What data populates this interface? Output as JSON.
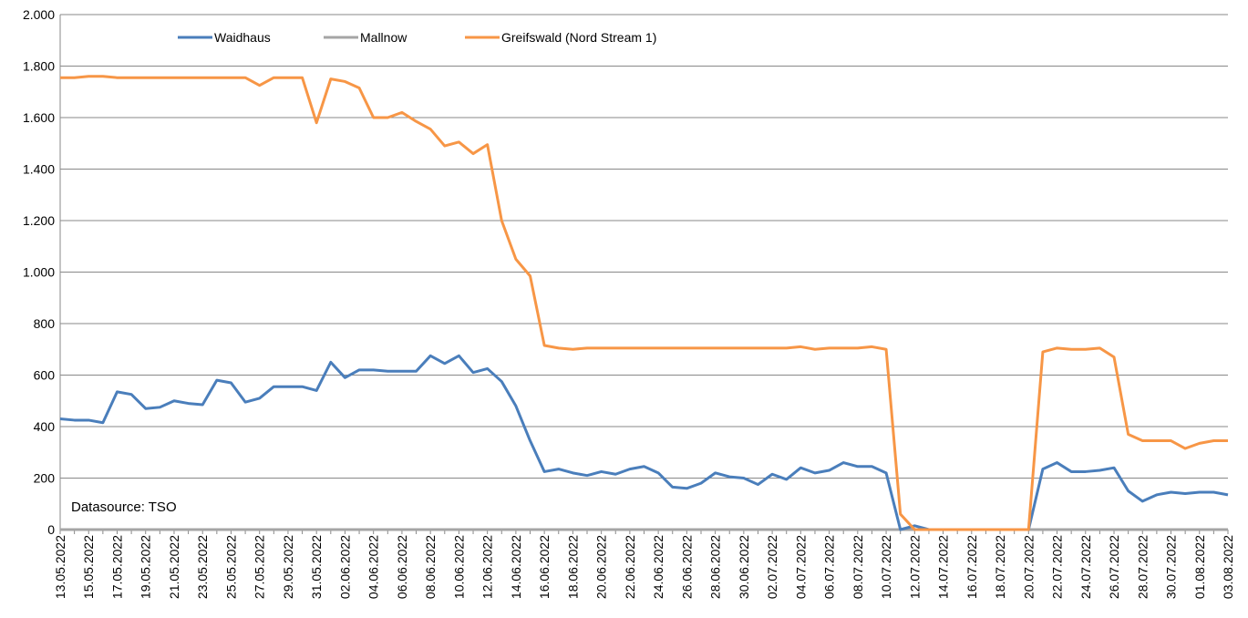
{
  "chart_data": {
    "type": "line",
    "annotation": "Datasource: TSO",
    "categories": [
      "13.05.2022",
      null,
      "15.05.2022",
      null,
      "17.05.2022",
      null,
      "19.05.2022",
      null,
      "21.05.2022",
      null,
      "23.05.2022",
      null,
      "25.05.2022",
      null,
      "27.05.2022",
      null,
      "29.05.2022",
      null,
      "31.05.2022",
      null,
      "02.06.2022",
      null,
      "04.06.2022",
      null,
      "06.06.2022",
      null,
      "08.06.2022",
      null,
      "10.06.2022",
      null,
      "12.06.2022",
      null,
      "14.06.2022",
      null,
      "16.06.2022",
      null,
      "18.06.2022",
      null,
      "20.06.2022",
      null,
      "22.06.2022",
      null,
      "24.06.2022",
      null,
      "26.06.2022",
      null,
      "28.06.2022",
      null,
      "30.06.2022",
      null,
      "02.07.2022",
      null,
      "04.07.2022",
      null,
      "06.07.2022",
      null,
      "08.07.2022",
      null,
      "10.07.2022",
      null,
      "12.07.2022",
      null,
      "14.07.2022",
      null,
      "16.07.2022",
      null,
      "18.07.2022",
      null,
      "20.07.2022",
      null,
      "22.07.2022",
      null,
      "24.07.2022",
      null,
      "26.07.2022",
      null,
      "28.07.2022",
      null,
      "30.07.2022",
      null,
      "01.08.2022",
      null,
      "03.08.2022"
    ],
    "series": [
      {
        "name": "Waidhaus",
        "color": "#4a7ebb",
        "values": [
          430,
          425,
          425,
          415,
          535,
          525,
          470,
          475,
          500,
          490,
          485,
          580,
          570,
          495,
          510,
          555,
          555,
          555,
          540,
          650,
          590,
          620,
          620,
          615,
          615,
          615,
          675,
          645,
          675,
          610,
          625,
          575,
          480,
          345,
          225,
          235,
          220,
          210,
          225,
          215,
          235,
          245,
          220,
          165,
          160,
          180,
          220,
          205,
          200,
          175,
          215,
          195,
          240,
          220,
          230,
          260,
          245,
          245,
          220,
          0,
          15,
          0,
          0,
          0,
          0,
          0,
          0,
          0,
          0,
          235,
          260,
          225,
          225,
          230,
          240,
          150,
          110,
          135,
          145,
          140,
          145,
          145,
          135
        ]
      },
      {
        "name": "Mallnow",
        "color": "#a5a5a5",
        "values": [
          0,
          0,
          0,
          0,
          0,
          0,
          0,
          0,
          0,
          0,
          0,
          0,
          0,
          0,
          0,
          0,
          0,
          0,
          0,
          0,
          0,
          0,
          0,
          0,
          0,
          0,
          0,
          0,
          0,
          0,
          0,
          0,
          0,
          0,
          0,
          0,
          0,
          0,
          0,
          0,
          0,
          0,
          0,
          0,
          0,
          0,
          0,
          0,
          0,
          0,
          0,
          0,
          0,
          0,
          0,
          0,
          0,
          0,
          0,
          0,
          0,
          0,
          0,
          0,
          0,
          0,
          0,
          0,
          0,
          0,
          0,
          0,
          0,
          0,
          0,
          0,
          0,
          0,
          0,
          0,
          0,
          0,
          0
        ]
      },
      {
        "name": "Greifswald (Nord Stream 1)",
        "color": "#f79646",
        "values": [
          1755,
          1755,
          1760,
          1760,
          1755,
          1755,
          1755,
          1755,
          1755,
          1755,
          1755,
          1755,
          1755,
          1755,
          1725,
          1755,
          1755,
          1755,
          1580,
          1750,
          1740,
          1715,
          1600,
          1600,
          1620,
          1585,
          1555,
          1490,
          1505,
          1460,
          1495,
          1200,
          1050,
          985,
          715,
          705,
          700,
          705,
          705,
          705,
          705,
          705,
          705,
          705,
          705,
          705,
          705,
          705,
          705,
          705,
          705,
          705,
          710,
          700,
          705,
          705,
          705,
          710,
          700,
          60,
          0,
          0,
          0,
          0,
          0,
          0,
          0,
          0,
          0,
          690,
          705,
          700,
          700,
          705,
          670,
          370,
          345,
          345,
          345,
          315,
          335,
          345,
          345
        ]
      }
    ],
    "ylim": [
      0,
      2000
    ],
    "yticks": [
      0,
      200,
      400,
      600,
      800,
      {
        "value": 1000,
        "label": "1.000"
      },
      {
        "value": 1200,
        "label": "1.200"
      },
      {
        "value": 1400,
        "label": "1.400"
      },
      {
        "value": 1600,
        "label": "1.600"
      },
      {
        "value": 1800,
        "label": "1.800"
      },
      {
        "value": 2000,
        "label": "2.000"
      }
    ],
    "grid": true
  }
}
